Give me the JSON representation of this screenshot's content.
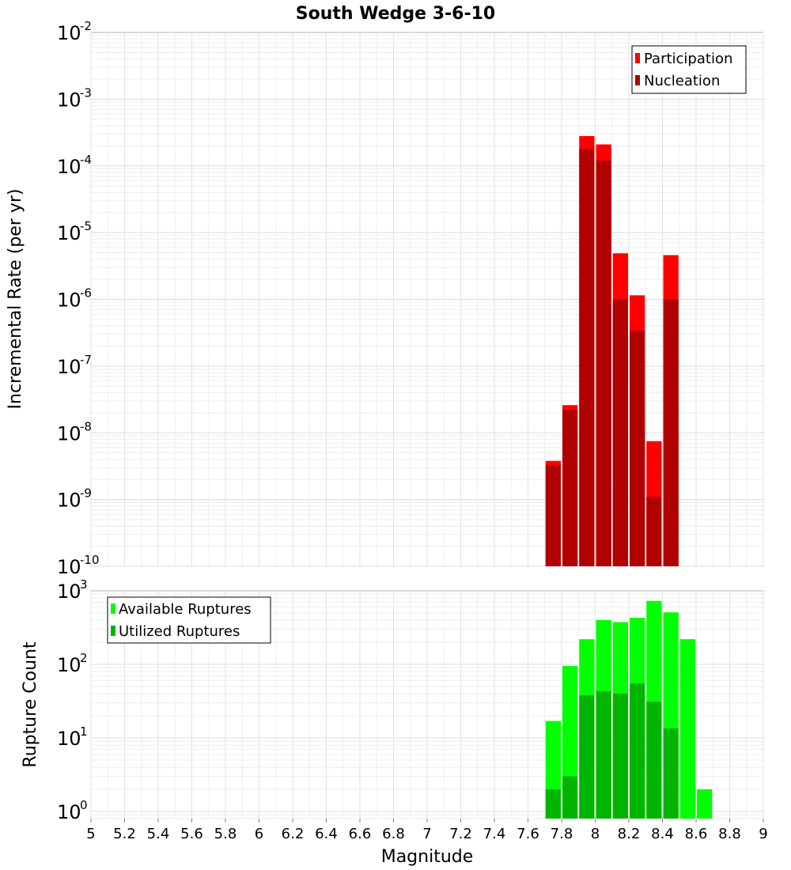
{
  "chart_data": {
    "type": "bar",
    "title": "South Wedge 3-6-10",
    "xlabel": "Magnitude",
    "xlim": [
      5,
      9
    ],
    "x_ticks": [
      "5",
      "5.2",
      "5.4",
      "5.6",
      "5.8",
      "6",
      "6.2",
      "6.4",
      "6.6",
      "6.8",
      "7",
      "7.2",
      "7.4",
      "7.6",
      "7.8",
      "8",
      "8.2",
      "8.4",
      "8.6",
      "8.8",
      "9"
    ],
    "panels": [
      {
        "ylabel": "Incremental Rate (per yr)",
        "yscale": "log",
        "ylim_exponents": [
          -10,
          -2
        ],
        "y_tick_exponents": [
          "-2",
          "-3",
          "-4",
          "-5",
          "-6",
          "-7",
          "-8",
          "-9",
          "-10"
        ],
        "legend_position": "top-right",
        "x": [
          7.75,
          7.85,
          7.95,
          8.05,
          8.15,
          8.25,
          8.35,
          8.45
        ],
        "series": [
          {
            "name": "Participation",
            "color": "#ff0000",
            "values": [
              3.8e-09,
              2.6e-08,
              0.00028,
              0.00021,
              4.9e-06,
              1.15e-06,
              7.5e-09,
              4.6e-06
            ]
          },
          {
            "name": "Nucleation",
            "color": "#b00000",
            "values": [
              3.3e-09,
              2.2e-08,
              0.00018,
              0.00012,
              1e-06,
              3.4e-07,
              1.1e-09,
              1e-06
            ]
          }
        ]
      },
      {
        "ylabel": "Rupture Count",
        "yscale": "log",
        "ylim": [
          0.8,
          1000
        ],
        "y_tick_exponents": [
          "3",
          "2",
          "1",
          "0"
        ],
        "legend_position": "top-left",
        "x": [
          7.75,
          7.85,
          7.95,
          8.05,
          8.15,
          8.25,
          8.35,
          8.45,
          8.55,
          8.65
        ],
        "series": [
          {
            "name": "Available Ruptures",
            "color": "#00ff00",
            "values": [
              17,
              95,
              220,
              400,
              375,
              430,
              730,
              510,
              220,
              2
            ]
          },
          {
            "name": "Utilized Ruptures",
            "color": "#00b400",
            "values": [
              2,
              3,
              38,
              43,
              40,
              55,
              31,
              13.5,
              null,
              null
            ]
          }
        ]
      }
    ]
  }
}
